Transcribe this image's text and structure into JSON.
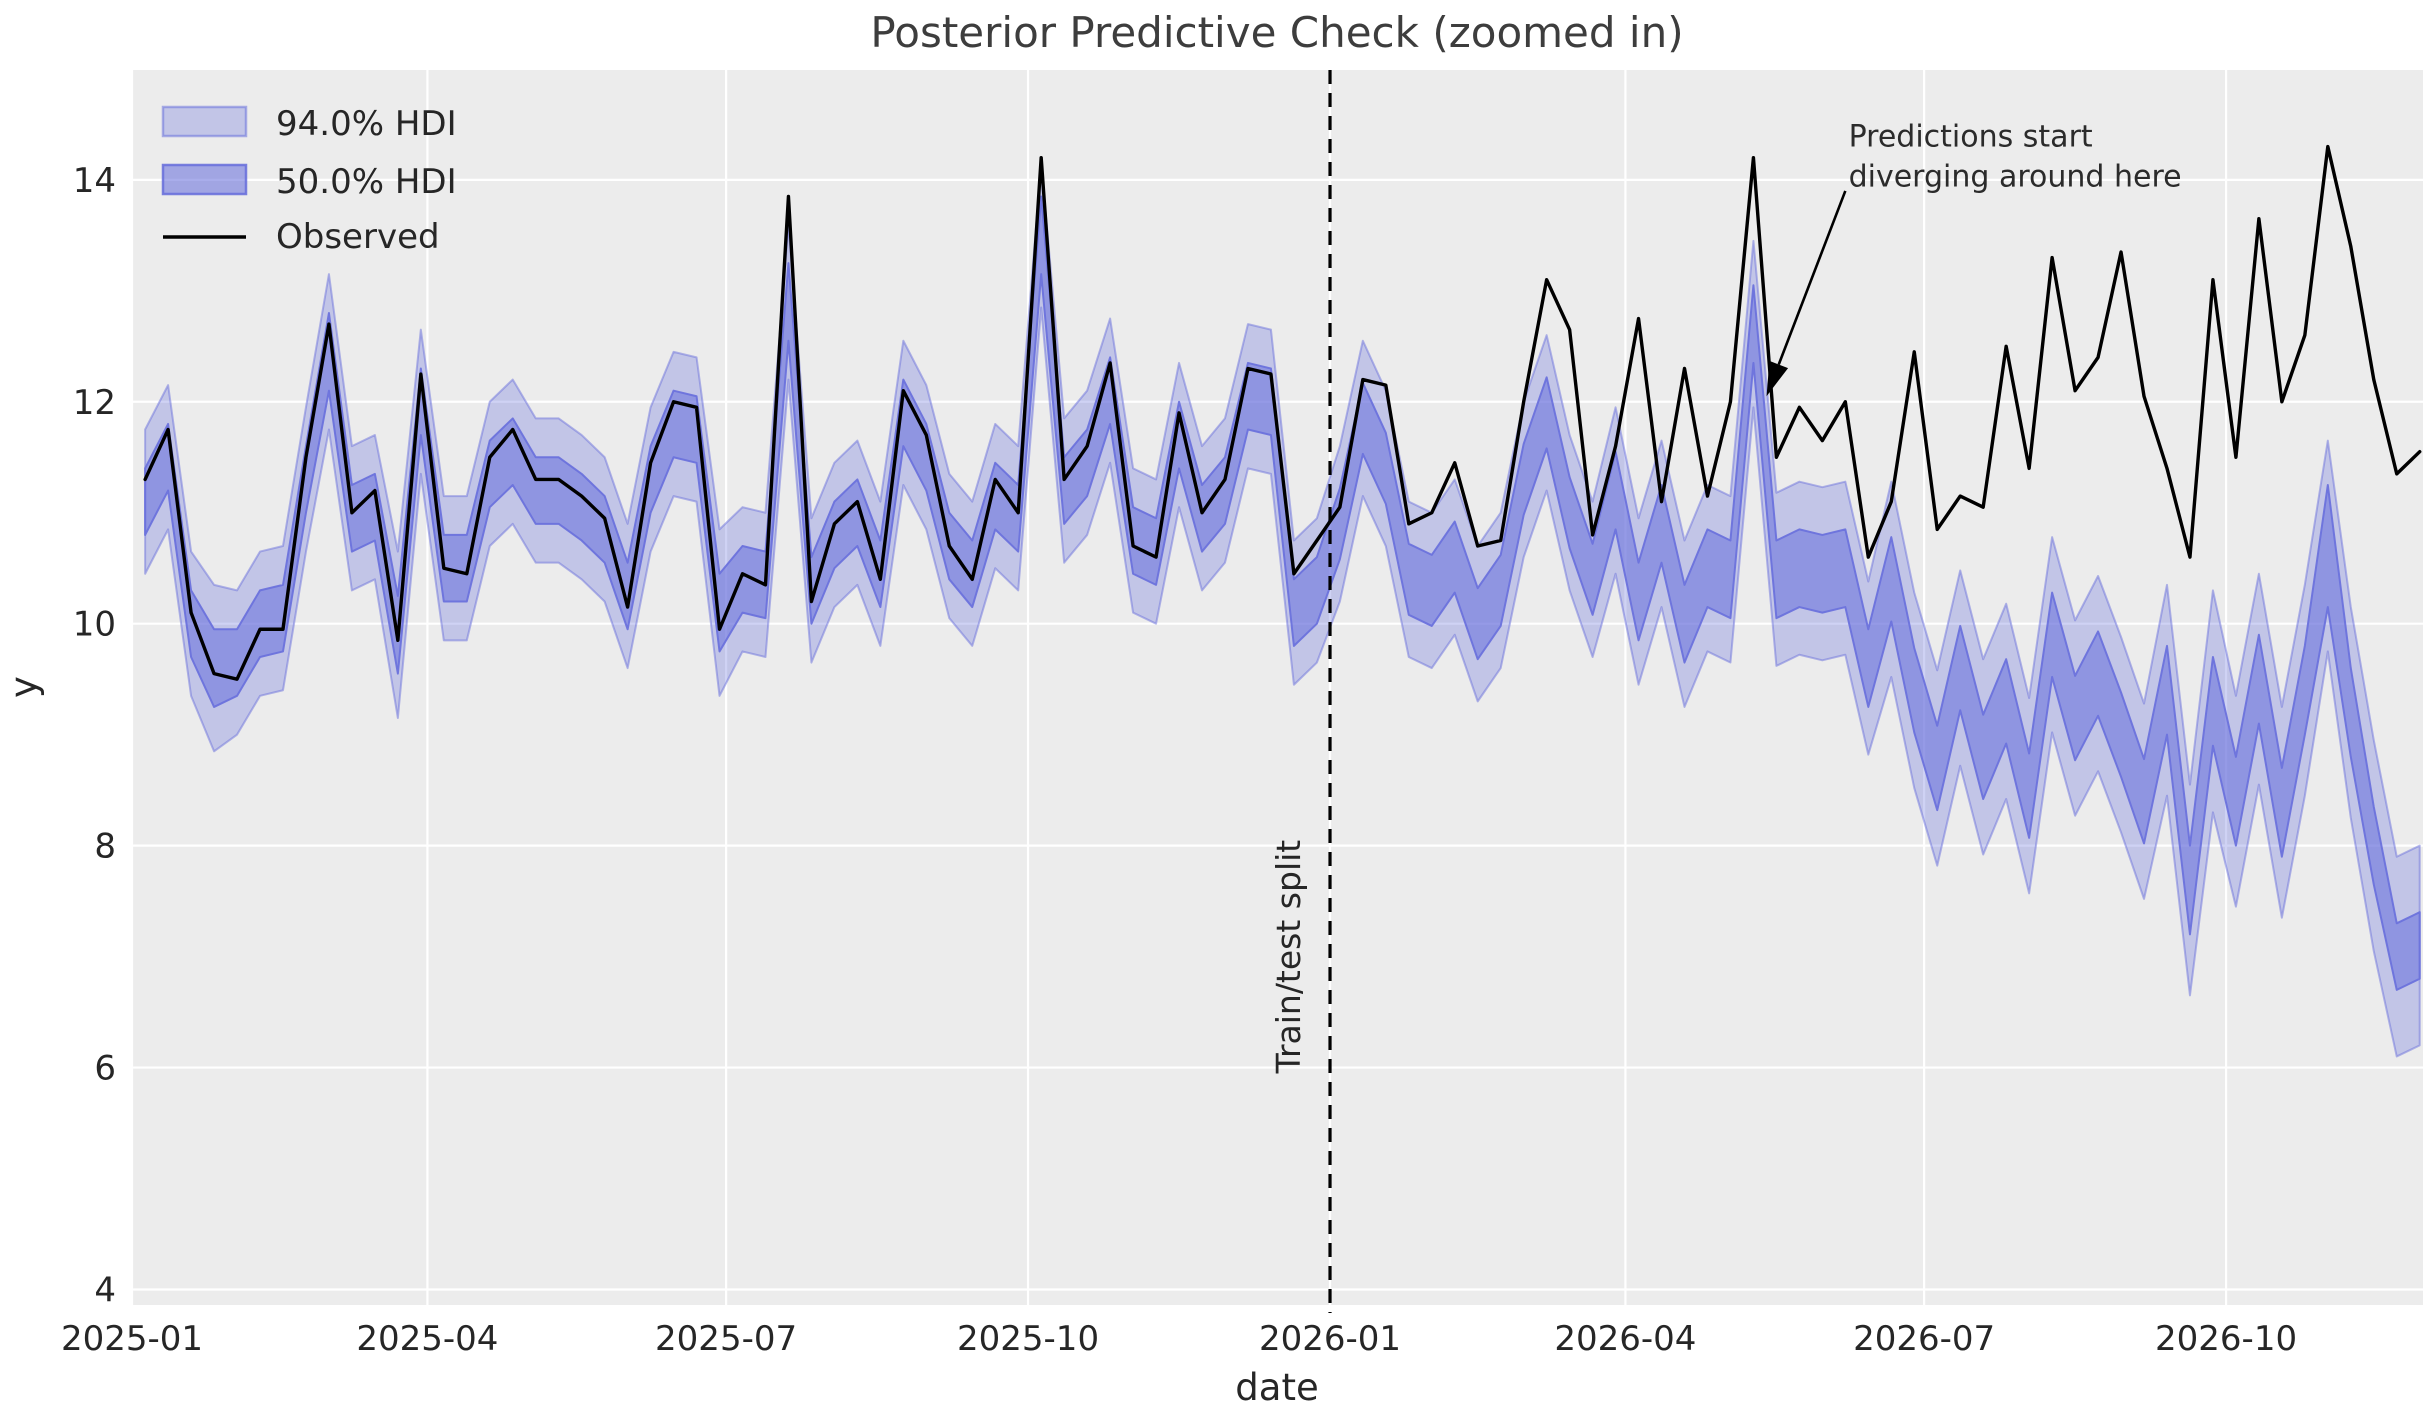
{
  "chart_data": {
    "type": "line",
    "title": "Posterior Predictive Check (zoomed in)",
    "xlabel": "date",
    "ylabel": "y",
    "ylim": [
      3.86,
      14.99
    ],
    "grid": true,
    "legend_position": "upper left",
    "legend": [
      "94.0% HDI",
      "50.0% HDI",
      "Observed"
    ],
    "colors": {
      "hdi": "#6b72dc",
      "observed": "#000000",
      "axes_bg": "#ececec",
      "grid": "#ffffff",
      "text": "#262626",
      "split_line": "#000000"
    },
    "x_first_day": 4,
    "x_interval_days": 7,
    "x_axis_range_days": 698,
    "x_start_label": "2025-01-05",
    "x_ticks": [
      {
        "label": "2025-01",
        "day": 0
      },
      {
        "label": "2025-04",
        "day": 90
      },
      {
        "label": "2025-07",
        "day": 181
      },
      {
        "label": "2025-10",
        "day": 273
      },
      {
        "label": "2026-01",
        "day": 365
      },
      {
        "label": "2026-04",
        "day": 455
      },
      {
        "label": "2026-07",
        "day": 546
      },
      {
        "label": "2026-10",
        "day": 638
      }
    ],
    "y_ticks": [
      4,
      6,
      8,
      10,
      12,
      14
    ],
    "split": {
      "label": "Train/test split",
      "day": 365,
      "label_center_value": 7.0
    },
    "annotation": {
      "line1": "Predictions start",
      "line2": "diverging around here",
      "text_day": 523,
      "text_value": 14.3,
      "arrow_from_day": 522,
      "arrow_from_value": 13.9,
      "arrow_to_day": 498,
      "arrow_to_value": 12.05
    },
    "observed": [
      11.3,
      11.75,
      10.1,
      9.55,
      9.5,
      9.95,
      9.95,
      11.5,
      12.7,
      11.0,
      11.2,
      9.85,
      12.25,
      10.5,
      10.45,
      11.5,
      11.75,
      11.3,
      11.3,
      11.15,
      10.95,
      10.15,
      11.45,
      12.0,
      11.95,
      9.95,
      10.45,
      10.35,
      13.85,
      10.2,
      10.9,
      11.1,
      10.4,
      12.1,
      11.7,
      10.7,
      10.4,
      11.3,
      11.0,
      14.2,
      11.3,
      11.6,
      12.35,
      10.7,
      10.6,
      11.9,
      11.0,
      11.3,
      12.3,
      12.25,
      10.45,
      10.75,
      11.05,
      12.2,
      12.15,
      10.9,
      11.0,
      11.45,
      10.7,
      10.75,
      12.0,
      13.1,
      12.65,
      10.8,
      11.6,
      12.75,
      11.1,
      12.3,
      11.15,
      12.0,
      14.2,
      11.5,
      11.95,
      11.65,
      12.0,
      10.6,
      11.1,
      12.45,
      10.85,
      11.15,
      11.05,
      12.5,
      11.4,
      13.3,
      12.1,
      12.4,
      13.35,
      12.05,
      11.4,
      10.6,
      13.1,
      11.5,
      13.65,
      12.0,
      12.6,
      14.3,
      13.4,
      12.2,
      11.35,
      11.55
    ],
    "pred_median": [
      11.1,
      11.5,
      10.0,
      9.6,
      9.65,
      10.0,
      10.05,
      11.3,
      12.45,
      10.95,
      11.05,
      9.9,
      12.0,
      10.5,
      10.5,
      11.35,
      11.55,
      11.2,
      11.2,
      11.05,
      10.85,
      10.25,
      11.3,
      11.8,
      11.75,
      10.1,
      10.4,
      10.35,
      12.9,
      10.3,
      10.8,
      11.0,
      10.45,
      11.9,
      11.5,
      10.7,
      10.45,
      11.15,
      10.95,
      13.5,
      11.2,
      11.45,
      12.1,
      10.75,
      10.65,
      11.7,
      10.95,
      11.2,
      12.05,
      12.0,
      10.1,
      10.3,
      10.9,
      11.85,
      11.4,
      10.4,
      10.3,
      10.6,
      10.0,
      10.3,
      11.3,
      11.9,
      11.0,
      10.4,
      11.2,
      10.2,
      10.9,
      10.0,
      10.5,
      10.4,
      12.7,
      10.4,
      10.5,
      10.45,
      10.5,
      9.6,
      10.4,
      9.4,
      8.7,
      9.6,
      8.8,
      9.3,
      8.45,
      9.9,
      9.15,
      9.55,
      9.0,
      8.4,
      9.4,
      7.6,
      9.3,
      8.4,
      9.5,
      8.3,
      9.4,
      10.7,
      9.2,
      8.0,
      7.0,
      7.1
    ],
    "hdi50_half_width": [
      0.3,
      0.3,
      0.3,
      0.35,
      0.3,
      0.3,
      0.3,
      0.3,
      0.35,
      0.3,
      0.3,
      0.35,
      0.3,
      0.3,
      0.3,
      0.3,
      0.3,
      0.3,
      0.3,
      0.3,
      0.3,
      0.3,
      0.3,
      0.3,
      0.3,
      0.35,
      0.3,
      0.3,
      0.35,
      0.3,
      0.3,
      0.3,
      0.3,
      0.3,
      0.3,
      0.3,
      0.3,
      0.3,
      0.3,
      0.35,
      0.3,
      0.3,
      0.3,
      0.3,
      0.3,
      0.3,
      0.3,
      0.3,
      0.3,
      0.3,
      0.3,
      0.3,
      0.32,
      0.32,
      0.32,
      0.32,
      0.32,
      0.32,
      0.32,
      0.32,
      0.32,
      0.32,
      0.32,
      0.32,
      0.35,
      0.35,
      0.35,
      0.35,
      0.35,
      0.35,
      0.35,
      0.35,
      0.35,
      0.35,
      0.35,
      0.35,
      0.38,
      0.38,
      0.38,
      0.38,
      0.38,
      0.38,
      0.38,
      0.38,
      0.38,
      0.38,
      0.38,
      0.38,
      0.4,
      0.4,
      0.4,
      0.4,
      0.4,
      0.4,
      0.4,
      0.55,
      0.4,
      0.35,
      0.3,
      0.3
    ],
    "hdi94_half_width": [
      0.65,
      0.65,
      0.65,
      0.75,
      0.65,
      0.65,
      0.65,
      0.65,
      0.7,
      0.65,
      0.65,
      0.75,
      0.65,
      0.65,
      0.65,
      0.65,
      0.65,
      0.65,
      0.65,
      0.65,
      0.65,
      0.65,
      0.65,
      0.65,
      0.65,
      0.75,
      0.65,
      0.65,
      0.7,
      0.65,
      0.65,
      0.65,
      0.65,
      0.65,
      0.65,
      0.65,
      0.65,
      0.65,
      0.65,
      0.65,
      0.65,
      0.65,
      0.65,
      0.65,
      0.65,
      0.65,
      0.65,
      0.65,
      0.65,
      0.65,
      0.65,
      0.65,
      0.7,
      0.7,
      0.7,
      0.7,
      0.7,
      0.7,
      0.7,
      0.7,
      0.7,
      0.7,
      0.7,
      0.7,
      0.75,
      0.75,
      0.75,
      0.75,
      0.75,
      0.75,
      0.75,
      0.78,
      0.78,
      0.78,
      0.78,
      0.78,
      0.88,
      0.88,
      0.88,
      0.88,
      0.88,
      0.88,
      0.88,
      0.88,
      0.88,
      0.88,
      0.88,
      0.88,
      0.95,
      0.95,
      1.0,
      0.95,
      0.95,
      0.95,
      0.95,
      0.95,
      0.95,
      0.95,
      0.9,
      0.9
    ]
  }
}
